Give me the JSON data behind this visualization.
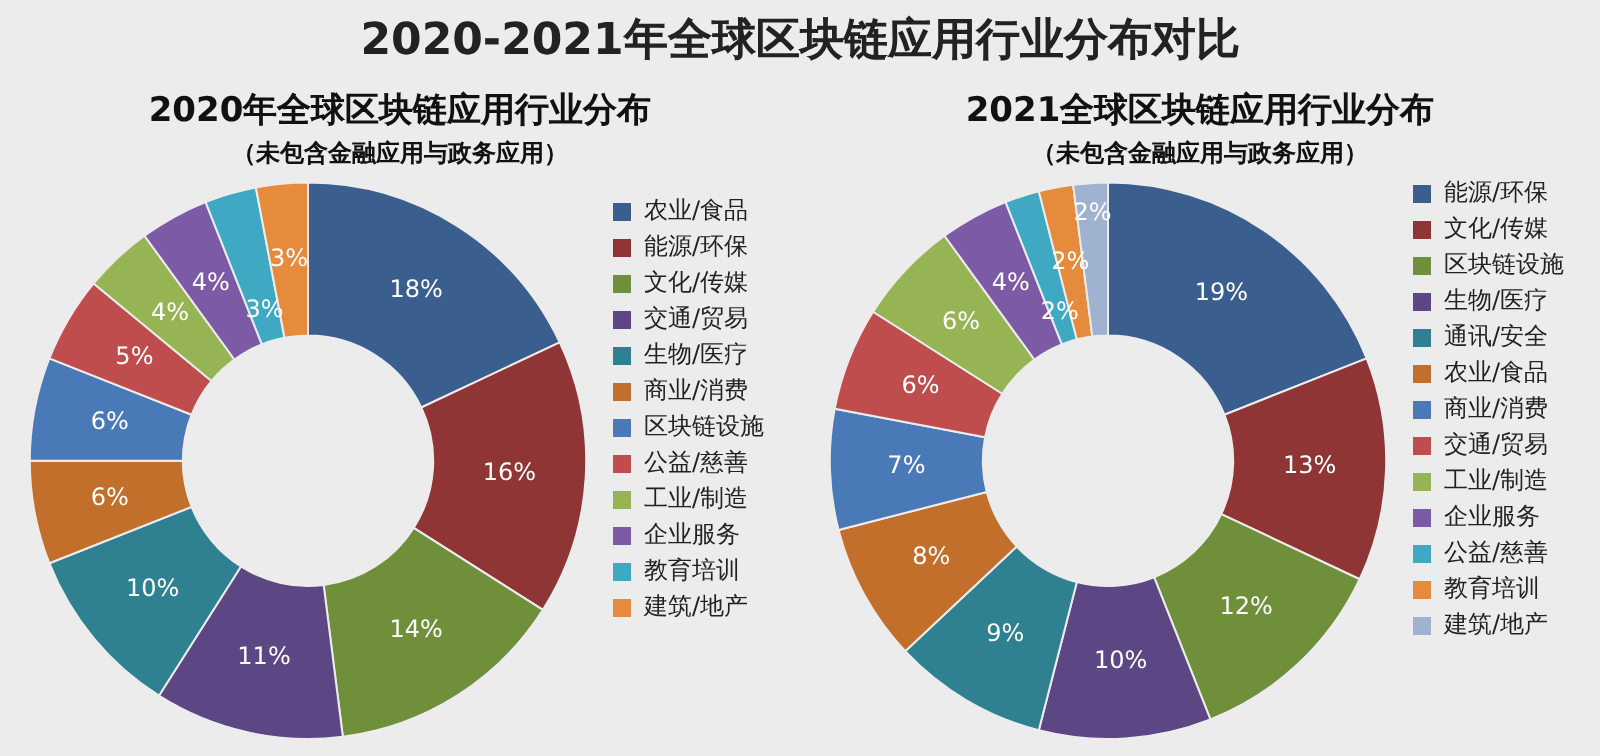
{
  "chart_data": [
    {
      "type": "donut",
      "title": "2020年全球区块链应用行业分布",
      "subtitle": "（未包含金融应用与政务应用）",
      "annotations": [
        "2020-2021年全球区块链应用行业分布对比"
      ],
      "categories": [
        "农业/食品",
        "能源/环保",
        "文化/传媒",
        "交通/贸易",
        "生物/医疗",
        "商业/消费",
        "区块链设施",
        "公益/慈善",
        "工业/制造",
        "企业服务",
        "教育培训",
        "建筑/地产"
      ],
      "values": [
        18,
        16,
        14,
        11,
        10,
        6,
        6,
        5,
        4,
        4,
        3,
        3
      ],
      "value_labels": [
        "18%",
        "16%",
        "14%",
        "11%",
        "10%",
        "6%",
        "6%",
        "5%",
        "4%",
        "4%",
        "3%",
        "3%"
      ],
      "colors": [
        "#3a5f8f",
        "#8f3535",
        "#6f8f3a",
        "#5c4683",
        "#2f8191",
        "#c26f2c",
        "#4a79b8",
        "#c04d4d",
        "#96b454",
        "#7d5aa6",
        "#3fa8c2",
        "#e68a3c"
      ],
      "legend": "right"
    },
    {
      "type": "donut",
      "title": "2021全球区块链应用行业分布",
      "subtitle": "（未包含金融应用与政务应用）",
      "categories": [
        "能源/环保",
        "文化/传媒",
        "区块链设施",
        "生物/医疗",
        "通讯/安全",
        "农业/食品",
        "商业/消费",
        "交通/贸易",
        "工业/制造",
        "企业服务",
        "公益/慈善",
        "教育培训",
        "建筑/地产"
      ],
      "values": [
        19,
        13,
        12,
        10,
        9,
        8,
        7,
        6,
        6,
        4,
        2,
        2,
        2
      ],
      "value_labels": [
        "19%",
        "13%",
        "12%",
        "10%",
        "9%",
        "8%",
        "7%",
        "6%",
        "6%",
        "4%",
        "2%",
        "2%",
        "2%"
      ],
      "colors": [
        "#3a5f8f",
        "#8f3535",
        "#6f8f3a",
        "#5c4683",
        "#2f8191",
        "#c26f2c",
        "#4a79b8",
        "#c04d4d",
        "#96b454",
        "#7d5aa6",
        "#3fa8c2",
        "#e68a3c",
        "#9fb3d1"
      ],
      "legend": "right"
    }
  ]
}
